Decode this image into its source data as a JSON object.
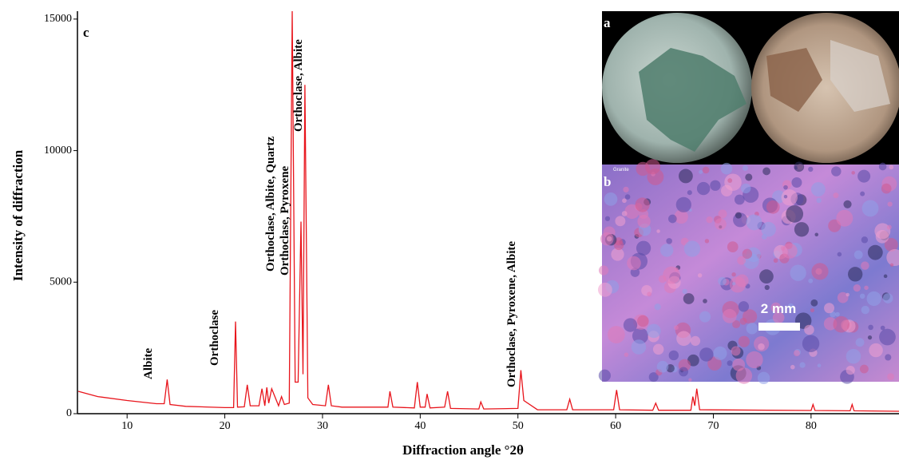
{
  "chart_data": {
    "type": "line",
    "panel_labels": [
      "a",
      "b",
      "c"
    ],
    "inset_caption": "Granite",
    "scale_bar": "2 mm",
    "ylabel": "Intensity of diffraction",
    "xlabel": "Diffraction angle °2θ",
    "annotations": [
      "Albite",
      "Orthoclase",
      "Orthoclase, Albite, Quartz",
      "Orthoclase, Pyroxene",
      "Orthoclase, Albite",
      "Orthoclase, Pyroxene, Albite"
    ],
    "color": "#e8141b",
    "xlim": [
      5,
      89
    ],
    "ylim": [
      0,
      15300
    ],
    "xticks": [
      10,
      20,
      30,
      40,
      50,
      60,
      70,
      80
    ],
    "yticks": [
      0,
      5000,
      10000,
      15000
    ],
    "x": [
      5,
      7,
      10,
      13,
      13.8,
      14.1,
      14.4,
      16,
      20,
      20.9,
      21.1,
      21.3,
      22,
      22.3,
      22.6,
      23.5,
      23.8,
      24.1,
      24.3,
      24.5,
      24.8,
      25.5,
      25.8,
      26.1,
      26.6,
      26.9,
      27.2,
      27.5,
      27.8,
      28.0,
      28.2,
      28.5,
      29,
      30.3,
      30.6,
      30.9,
      32,
      35,
      36.7,
      36.9,
      37.2,
      39.4,
      39.7,
      40,
      40.5,
      40.7,
      41,
      42.5,
      42.8,
      43.1,
      46,
      46.2,
      46.5,
      50,
      50.3,
      50.6,
      52,
      55,
      55.3,
      55.6,
      59.8,
      60.1,
      60.4,
      63.8,
      64.1,
      64.4,
      67.7,
      67.9,
      68.1,
      68.3,
      68.6,
      80,
      80.2,
      80.4,
      84,
      84.2,
      84.4,
      89
    ],
    "values": [
      850,
      650,
      500,
      380,
      380,
      1300,
      350,
      280,
      230,
      230,
      3500,
      250,
      260,
      1100,
      300,
      300,
      950,
      300,
      1000,
      400,
      950,
      300,
      650,
      350,
      400,
      15300,
      1200,
      1200,
      7300,
      1500,
      12500,
      600,
      350,
      300,
      1100,
      300,
      250,
      250,
      250,
      850,
      250,
      220,
      1200,
      250,
      250,
      750,
      220,
      250,
      850,
      200,
      180,
      450,
      180,
      200,
      1650,
      500,
      150,
      150,
      550,
      150,
      150,
      900,
      150,
      130,
      400,
      130,
      130,
      650,
      300,
      950,
      150,
      120,
      350,
      120,
      110,
      350,
      110,
      90
    ]
  }
}
